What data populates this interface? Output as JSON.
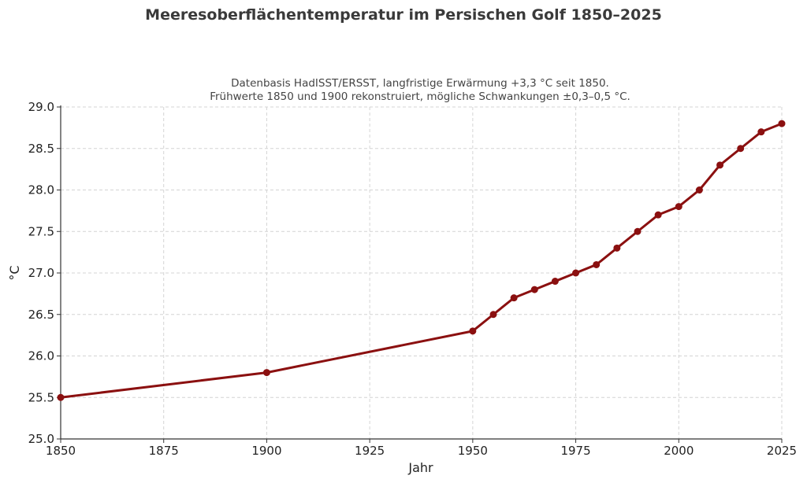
{
  "chart_data": {
    "type": "line",
    "title": "Meeresoberflächentemperatur im Persischen Golf 1850–2025",
    "subtitle_lines": [
      "Datenbasis HadISST/ERSST, langfristige Erwärmung +3,3 °C seit 1850.",
      "Frühwerte 1850 und 1900 rekonstruiert, mögliche Schwankungen ±0,3–0,5 °C."
    ],
    "xlabel": "Jahr",
    "ylabel": "°C",
    "xlim": [
      1850,
      2025
    ],
    "ylim": [
      25.0,
      29.0
    ],
    "xticks": [
      "1850",
      "1875",
      "1900",
      "1925",
      "1950",
      "1975",
      "2000",
      "2025"
    ],
    "yticks": [
      "25.0",
      "25.5",
      "26.0",
      "26.5",
      "27.0",
      "27.5",
      "28.0",
      "28.5",
      "29.0"
    ],
    "grid": true,
    "color": "#8b1010",
    "x": [
      1850,
      1900,
      1950,
      1955,
      1960,
      1965,
      1970,
      1975,
      1980,
      1985,
      1990,
      1995,
      2000,
      2005,
      2010,
      2015,
      2020,
      2025
    ],
    "y": [
      25.5,
      25.8,
      26.3,
      26.5,
      26.7,
      26.8,
      26.9,
      27.0,
      27.1,
      27.3,
      27.5,
      27.7,
      27.8,
      28.0,
      28.3,
      28.5,
      28.7,
      28.8
    ]
  }
}
